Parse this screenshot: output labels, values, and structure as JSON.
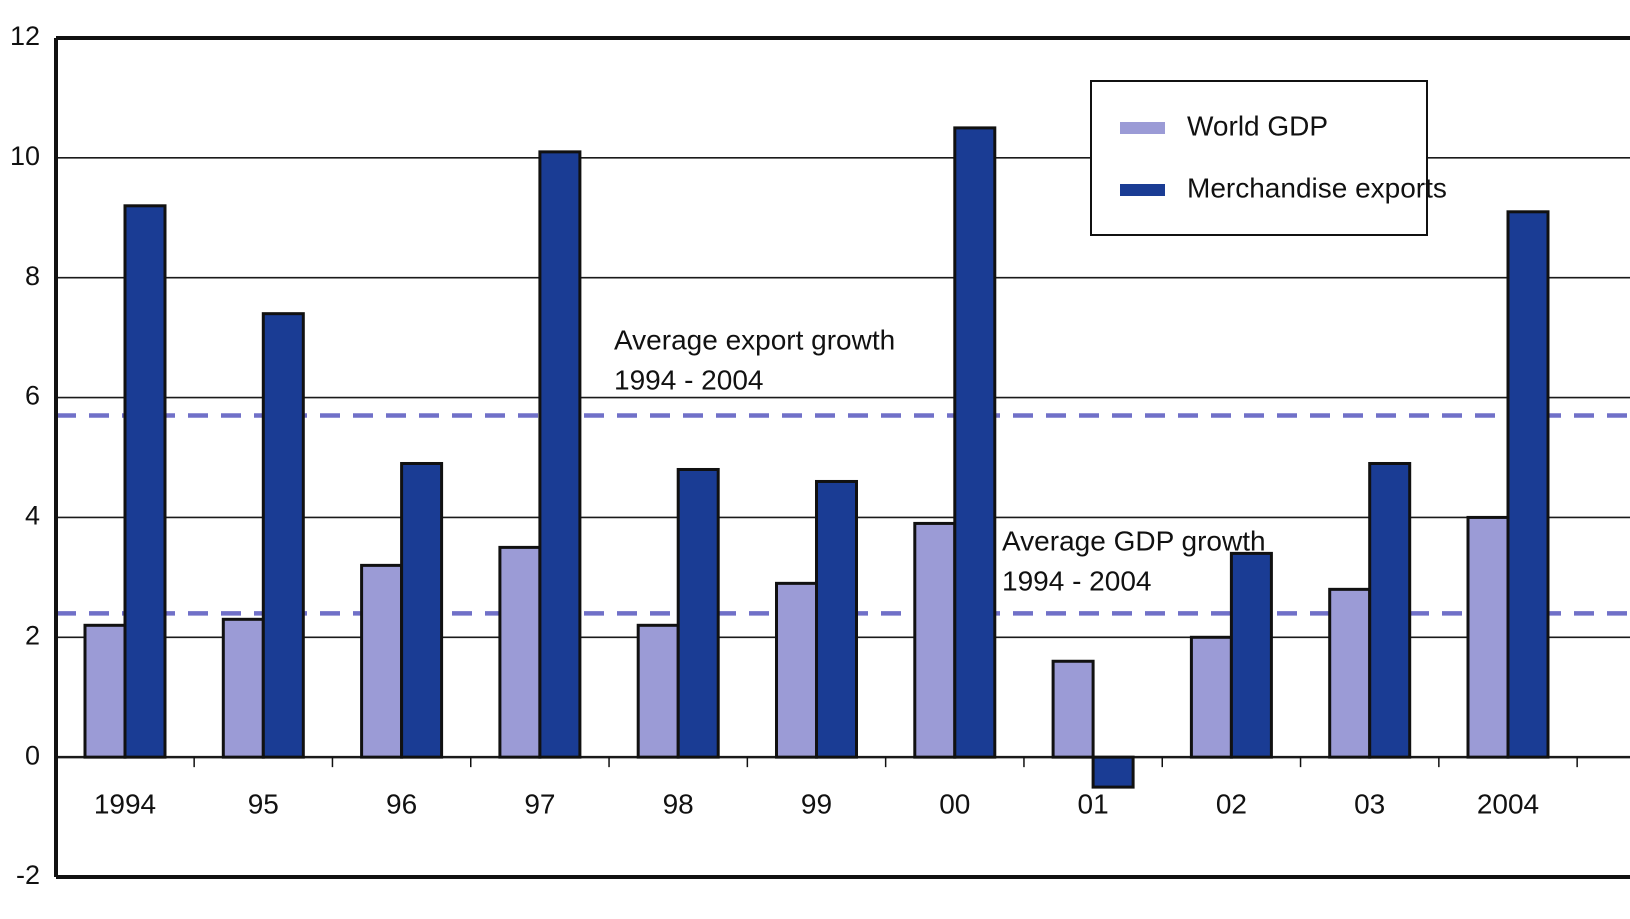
{
  "chart_data": {
    "type": "bar",
    "title": "",
    "xlabel": "",
    "ylabel": "",
    "ylim": [
      -2,
      12
    ],
    "yticks": [
      "12",
      "10",
      "8",
      "6",
      "4",
      "2",
      "0",
      "-2"
    ],
    "ytick_values": [
      12,
      10,
      8,
      6,
      4,
      2,
      0,
      -2
    ],
    "categories": [
      "1994",
      "95",
      "96",
      "97",
      "98",
      "99",
      "00",
      "01",
      "02",
      "03",
      "2004"
    ],
    "series": [
      {
        "name": "World GDP",
        "color": "#9b9bd6",
        "values": [
          2.2,
          2.3,
          3.2,
          3.5,
          2.2,
          2.9,
          3.9,
          1.6,
          2.0,
          2.8,
          4.0
        ]
      },
      {
        "name": "Merchandise exports",
        "color": "#1a3c94",
        "values": [
          9.2,
          7.4,
          4.9,
          10.1,
          4.8,
          4.6,
          10.5,
          -0.5,
          3.4,
          4.9,
          9.1
        ]
      }
    ],
    "reference_lines": [
      {
        "label_line1": "Average export growth",
        "label_line2": "1994 - 2004",
        "value": 5.7,
        "color": "#7070c8",
        "style": "dashed"
      },
      {
        "label_line1": "Average GDP growth",
        "label_line2": "1994 - 2004",
        "value": 2.4,
        "color": "#7070c8",
        "style": "dashed"
      }
    ],
    "grid": true,
    "legend": {
      "placement": "top-right",
      "entries": [
        "World GDP",
        "Merchandise exports"
      ]
    }
  }
}
